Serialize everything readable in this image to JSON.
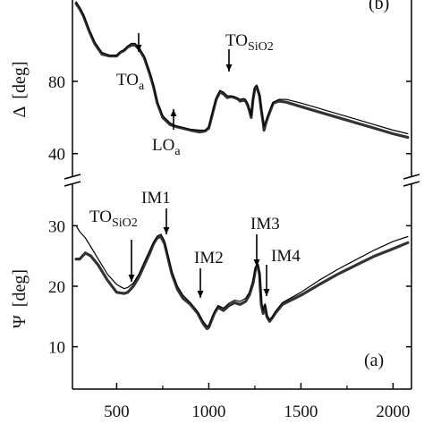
{
  "chart_data": [
    {
      "panel": "top",
      "panel_label": "(b)",
      "type": "line",
      "ylabel_main": "Δ",
      "ylabel_unit": "[deg]",
      "y_ticks": [
        40,
        80
      ],
      "ylim": [
        27,
        125
      ],
      "xlim": [
        260,
        2100
      ],
      "series": [
        {
          "role": "measured",
          "x": [
            280,
            300,
            320,
            350,
            380,
            420,
            460,
            500,
            520,
            540,
            560,
            580,
            600,
            620,
            650,
            680,
            700,
            720,
            750,
            790,
            820,
            860,
            900,
            950,
            980,
            1000,
            1020,
            1040,
            1060,
            1080,
            1100,
            1120,
            1140,
            1160,
            1170,
            1190,
            1200,
            1210,
            1220,
            1230,
            1240,
            1250,
            1260,
            1275,
            1285,
            1295,
            1300,
            1310,
            1320,
            1335,
            1350,
            1380,
            1420,
            1500,
            1600,
            1700,
            1800,
            1900,
            2000,
            2080
          ],
          "y": [
            123,
            120,
            116,
            108,
            101,
            95,
            94,
            94,
            96,
            97,
            99,
            100,
            100,
            98,
            93,
            84,
            77,
            68,
            60,
            56,
            55,
            54,
            53,
            52,
            52.5,
            54,
            62,
            70,
            74,
            73,
            71,
            71.5,
            71,
            70,
            69,
            69.5,
            69,
            67,
            64,
            60,
            70,
            76,
            77,
            72,
            64,
            57,
            53,
            57,
            60,
            64,
            68,
            69,
            68.5,
            66,
            63,
            60,
            57,
            54,
            51,
            49
          ]
        },
        {
          "role": "model",
          "x": [
            280,
            300,
            320,
            350,
            380,
            420,
            460,
            500,
            520,
            540,
            560,
            580,
            600,
            620,
            650,
            680,
            700,
            720,
            750,
            790,
            820,
            860,
            900,
            950,
            980,
            1000,
            1020,
            1040,
            1060,
            1080,
            1100,
            1120,
            1140,
            1160,
            1170,
            1190,
            1200,
            1210,
            1220,
            1230,
            1240,
            1250,
            1260,
            1275,
            1285,
            1295,
            1300,
            1310,
            1320,
            1335,
            1350,
            1380,
            1420,
            1500,
            1600,
            1700,
            1800,
            1900,
            2000,
            2080
          ],
          "y": [
            124,
            121,
            117,
            109,
            102,
            96,
            94.5,
            94.5,
            96.5,
            97.5,
            99.5,
            101,
            101,
            99,
            94,
            85,
            78,
            69,
            61,
            57,
            55.5,
            54.5,
            53.5,
            53,
            53,
            55,
            63,
            71,
            75,
            74,
            72,
            72,
            71.5,
            70.5,
            70,
            70.5,
            70,
            68,
            65,
            61,
            71,
            77,
            78,
            73,
            65,
            58,
            55,
            58,
            61,
            65,
            68.5,
            70,
            70,
            68,
            65,
            62,
            59,
            56,
            53,
            51
          ]
        }
      ],
      "annotations": [
        {
          "label": "TO",
          "sub": "a",
          "x": 590
        },
        {
          "label": "LO",
          "sub": "a",
          "x": 770
        },
        {
          "label": "TO",
          "sub": "SiO2",
          "x": 1100
        }
      ]
    },
    {
      "panel": "bottom",
      "panel_label": "(a)",
      "type": "line",
      "ylabel_main": "Ψ",
      "ylabel_unit": "[deg]",
      "y_ticks": [
        10,
        20,
        30
      ],
      "ylim": [
        3,
        37
      ],
      "xlim": [
        260,
        2100
      ],
      "x_ticks": [
        500,
        1000,
        1500,
        2000
      ],
      "series": [
        {
          "role": "measured",
          "x": [
            280,
            300,
            330,
            360,
            400,
            450,
            500,
            540,
            560,
            590,
            620,
            650,
            680,
            700,
            720,
            740,
            760,
            780,
            800,
            830,
            860,
            900,
            940,
            970,
            990,
            1000,
            1010,
            1030,
            1050,
            1080,
            1110,
            1140,
            1170,
            1200,
            1220,
            1240,
            1255,
            1265,
            1275,
            1285,
            1295,
            1305,
            1315,
            1330,
            1345,
            1360,
            1400,
            1500,
            1600,
            1700,
            1800,
            1900,
            2000,
            2080
          ],
          "y": [
            24.5,
            24.5,
            25.5,
            25,
            23.5,
            21,
            19,
            18.8,
            19,
            20,
            21.5,
            23.5,
            25.5,
            27,
            28,
            28.2,
            27,
            24.5,
            22,
            19.5,
            18,
            17,
            15.5,
            13.8,
            13,
            13.2,
            14,
            15.5,
            16.5,
            16,
            16.8,
            17.3,
            17,
            17.5,
            18.5,
            20.5,
            23,
            23.5,
            22,
            17,
            15.5,
            16.8,
            15,
            14.2,
            14.8,
            15.5,
            17,
            18.5,
            20.3,
            22,
            23.5,
            25,
            26.2,
            27.2
          ]
        },
        {
          "role": "model",
          "x": [
            280,
            300,
            330,
            360,
            400,
            450,
            500,
            540,
            560,
            590,
            620,
            650,
            680,
            700,
            720,
            740,
            760,
            780,
            800,
            830,
            860,
            900,
            940,
            970,
            990,
            1000,
            1010,
            1030,
            1050,
            1080,
            1110,
            1140,
            1170,
            1200,
            1220,
            1240,
            1255,
            1265,
            1275,
            1285,
            1295,
            1305,
            1315,
            1330,
            1345,
            1360,
            1400,
            1500,
            1600,
            1700,
            1800,
            1900,
            2000,
            2080
          ],
          "y": [
            30,
            29,
            28,
            26.5,
            24.5,
            22,
            20.3,
            19.6,
            19.8,
            20.5,
            22,
            24,
            26,
            27.3,
            28.3,
            28.6,
            27.5,
            25,
            22.5,
            20,
            18.5,
            17.3,
            15.8,
            14.2,
            13.4,
            13.5,
            14.3,
            15.8,
            16.8,
            16.4,
            17.2,
            17.7,
            17.5,
            18,
            19,
            21,
            23.3,
            23.8,
            22.3,
            17.5,
            16,
            17.1,
            15.3,
            14.5,
            15,
            15.8,
            17.3,
            19,
            21,
            22.8,
            24.4,
            26,
            27.4,
            28.2
          ]
        }
      ],
      "annotations": [
        {
          "label": "TO",
          "sub": "SiO2",
          "x": 540
        },
        {
          "label": "IM1",
          "sub": "",
          "x": 745
        },
        {
          "label": "IM2",
          "sub": "",
          "x": 920
        },
        {
          "label": "IM3",
          "sub": "",
          "x": 1255
        },
        {
          "label": "IM4",
          "sub": "",
          "x": 1300
        }
      ]
    }
  ]
}
